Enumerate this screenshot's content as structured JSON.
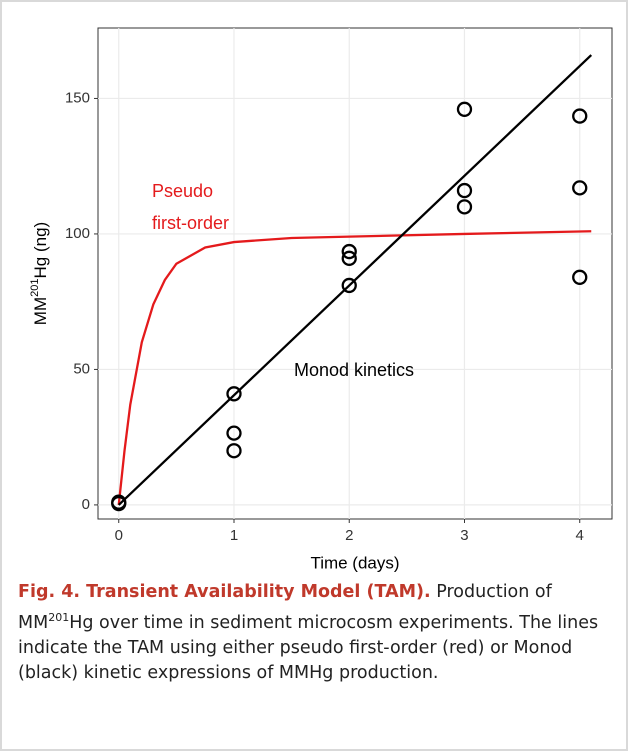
{
  "chart_data": {
    "type": "scatter",
    "xlabel": "Time (days)",
    "ylabel": {
      "main": "MM",
      "sup": "201",
      "rest": "Hg (ng)"
    },
    "xlim": [
      -0.18,
      4.28
    ],
    "ylim": [
      -5.2,
      176
    ],
    "xticks": [
      0,
      1,
      2,
      3,
      4
    ],
    "yticks": [
      0,
      50,
      100,
      150
    ],
    "grid": true,
    "points": {
      "color": "#000000",
      "x": [
        0,
        0,
        1,
        1,
        1,
        2,
        2,
        2,
        3,
        3,
        3,
        4,
        4,
        4
      ],
      "values": [
        0.5,
        1,
        41,
        26.5,
        20,
        93.5,
        91,
        81,
        146,
        116,
        110,
        143.5,
        117,
        84
      ]
    },
    "lines": [
      {
        "color": "#e41a1c",
        "x": [
          0,
          0.05,
          0.1,
          0.2,
          0.3,
          0.4,
          0.5,
          0.75,
          1,
          1.5,
          2,
          3,
          4.1
        ],
        "values": [
          0,
          20,
          37,
          60,
          74,
          83,
          89,
          95,
          97,
          98.5,
          99,
          100,
          101
        ]
      },
      {
        "color": "#000000",
        "x": [
          0,
          4.1
        ],
        "values": [
          0,
          166
        ]
      }
    ],
    "annotations": [
      "Pseudo",
      "first-order",
      "Monod kinetics"
    ]
  },
  "caption": {
    "title": "Fig. 4. Transient Availability Model (TAM).",
    "text_before": " Production of MM",
    "sup": "201",
    "text_after": "Hg over time in sediment microcosm experiments. The lines indicate the TAM using either pseudo first-order (red) or Monod (black) kinetic expressions of MMHg production."
  }
}
